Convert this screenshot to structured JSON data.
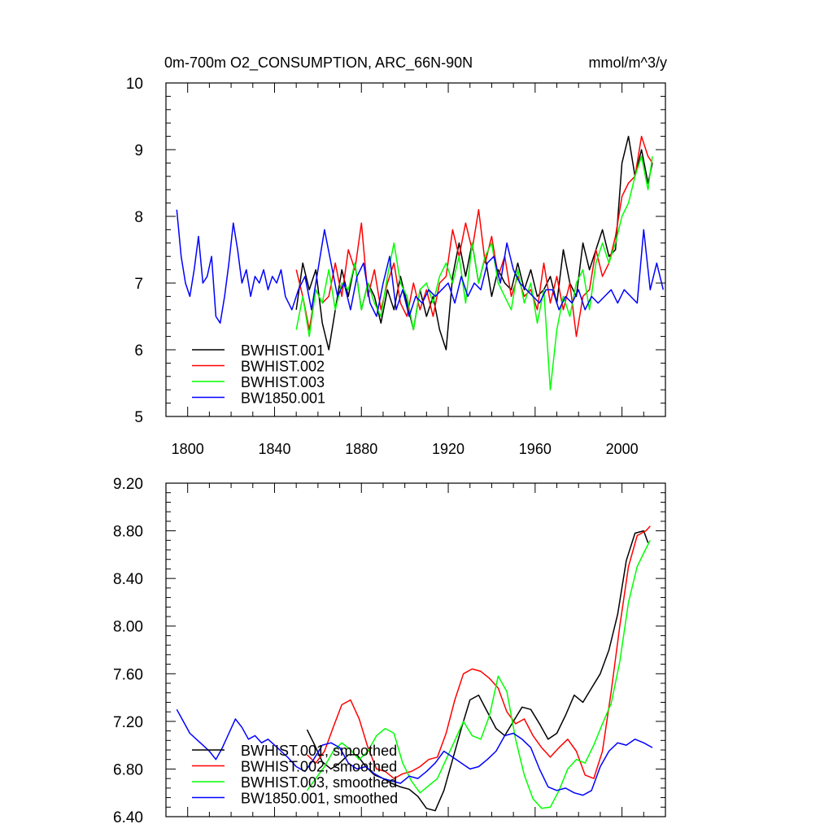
{
  "header": {
    "left_title": "0m-700m O2_CONSUMPTION, ARC_66N-90N",
    "right_title": "mmol/m^3/y"
  },
  "colors": {
    "BWHIST.001": "#000000",
    "BWHIST.002": "#ff0000",
    "BWHIST.003": "#00ff00",
    "BW1850.001": "#0000ff",
    "frame": "#000000"
  },
  "chart_data": [
    {
      "type": "line",
      "title": "0m-700m O2_CONSUMPTION, ARC_66N-90N",
      "units": "mmol/m^3/y",
      "xlim": [
        1790,
        2020
      ],
      "ylim": [
        5,
        10
      ],
      "x_ticks": [
        1800,
        1840,
        1880,
        1920,
        1960,
        2000
      ],
      "x_tick_labels": [
        "1800",
        "1840",
        "1880",
        "1920",
        "1960",
        "2000"
      ],
      "y_ticks": [
        5,
        6,
        7,
        8,
        9,
        10
      ],
      "y_tick_labels": [
        "5",
        "6",
        "7",
        "8",
        "9",
        "10"
      ],
      "legend_position": "bottom-left",
      "series": [
        {
          "name": "BWHIST.001",
          "label": "BWHIST.001",
          "color": "#000000",
          "x": [
            1850,
            1853,
            1856,
            1859,
            1862,
            1865,
            1868,
            1871,
            1874,
            1877,
            1880,
            1883,
            1886,
            1889,
            1892,
            1895,
            1898,
            1901,
            1904,
            1907,
            1910,
            1913,
            1916,
            1919,
            1922,
            1925,
            1928,
            1931,
            1934,
            1937,
            1940,
            1943,
            1946,
            1949,
            1952,
            1955,
            1958,
            1961,
            1964,
            1967,
            1970,
            1973,
            1976,
            1979,
            1982,
            1985,
            1988,
            1991,
            1994,
            1997,
            2000,
            2003,
            2006,
            2009,
            2012,
            2014
          ],
          "values": [
            6.6,
            7.3,
            6.9,
            7.2,
            6.4,
            6.0,
            6.6,
            7.2,
            6.8,
            7.3,
            6.6,
            7.0,
            6.8,
            6.4,
            6.9,
            6.6,
            7.1,
            6.7,
            6.3,
            6.9,
            6.5,
            6.8,
            6.3,
            6.0,
            7.1,
            7.6,
            7.1,
            7.6,
            7.0,
            7.4,
            6.8,
            7.2,
            7.0,
            6.9,
            7.3,
            6.9,
            7.2,
            6.8,
            6.9,
            7.1,
            6.7,
            7.5,
            7.0,
            6.8,
            7.6,
            7.2,
            7.5,
            7.8,
            7.4,
            7.5,
            8.8,
            9.2,
            8.6,
            9.0,
            8.5,
            8.8
          ]
        },
        {
          "name": "BWHIST.002",
          "label": "BWHIST.002",
          "color": "#ff0000",
          "x": [
            1850,
            1853,
            1856,
            1859,
            1862,
            1865,
            1868,
            1871,
            1874,
            1877,
            1880,
            1883,
            1886,
            1889,
            1892,
            1895,
            1898,
            1901,
            1904,
            1907,
            1910,
            1913,
            1916,
            1919,
            1922,
            1925,
            1928,
            1931,
            1934,
            1937,
            1940,
            1943,
            1946,
            1949,
            1952,
            1955,
            1958,
            1961,
            1964,
            1967,
            1970,
            1973,
            1976,
            1979,
            1982,
            1985,
            1988,
            1991,
            1994,
            1997,
            2000,
            2003,
            2006,
            2009,
            2012,
            2014
          ],
          "values": [
            7.2,
            6.8,
            6.3,
            6.9,
            6.7,
            6.8,
            7.3,
            6.8,
            7.5,
            7.2,
            7.9,
            6.8,
            7.2,
            6.6,
            7.0,
            7.3,
            6.7,
            6.5,
            7.0,
            6.6,
            6.9,
            6.5,
            7.0,
            7.1,
            7.8,
            7.4,
            7.9,
            7.5,
            8.1,
            7.3,
            7.7,
            7.1,
            7.4,
            6.8,
            7.1,
            6.8,
            6.9,
            6.6,
            7.3,
            6.7,
            7.1,
            6.6,
            7.0,
            6.2,
            6.8,
            6.9,
            7.5,
            7.1,
            7.3,
            7.7,
            8.3,
            8.5,
            8.6,
            9.2,
            8.9,
            8.8
          ]
        },
        {
          "name": "BWHIST.003",
          "label": "BWHIST.003",
          "color": "#00ff00",
          "x": [
            1850,
            1853,
            1856,
            1859,
            1862,
            1865,
            1868,
            1871,
            1874,
            1877,
            1880,
            1883,
            1886,
            1889,
            1892,
            1895,
            1898,
            1901,
            1904,
            1907,
            1910,
            1913,
            1916,
            1919,
            1922,
            1925,
            1928,
            1931,
            1934,
            1937,
            1940,
            1943,
            1946,
            1949,
            1952,
            1955,
            1958,
            1961,
            1964,
            1967,
            1970,
            1973,
            1976,
            1979,
            1982,
            1985,
            1988,
            1991,
            1994,
            1997,
            2000,
            2003,
            2006,
            2009,
            2012,
            2014
          ],
          "values": [
            6.3,
            6.8,
            6.2,
            6.9,
            6.7,
            7.2,
            6.6,
            7.0,
            6.9,
            7.3,
            6.6,
            7.0,
            6.7,
            6.5,
            7.1,
            7.6,
            7.0,
            6.8,
            6.3,
            6.9,
            7.0,
            6.7,
            7.1,
            7.3,
            7.0,
            7.4,
            6.7,
            7.6,
            7.0,
            7.4,
            7.6,
            7.0,
            6.8,
            6.6,
            7.2,
            6.7,
            7.0,
            6.4,
            6.9,
            5.4,
            6.3,
            6.8,
            6.5,
            7.0,
            7.2,
            6.6,
            7.3,
            7.6,
            7.3,
            7.6,
            8.0,
            8.2,
            8.6,
            8.9,
            8.4,
            8.9
          ]
        },
        {
          "name": "BW1850.001",
          "label": "BW1850.001",
          "color": "#0000ff",
          "x": [
            1795,
            1797,
            1799,
            1801,
            1803,
            1805,
            1807,
            1809,
            1811,
            1813,
            1815,
            1817,
            1819,
            1821,
            1823,
            1825,
            1827,
            1829,
            1831,
            1833,
            1835,
            1837,
            1839,
            1841,
            1843,
            1845,
            1848,
            1851,
            1854,
            1857,
            1860,
            1863,
            1866,
            1869,
            1872,
            1875,
            1878,
            1881,
            1884,
            1887,
            1890,
            1893,
            1896,
            1899,
            1902,
            1905,
            1908,
            1911,
            1914,
            1917,
            1920,
            1923,
            1926,
            1929,
            1932,
            1935,
            1938,
            1941,
            1944,
            1947,
            1950,
            1953,
            1956,
            1959,
            1962,
            1965,
            1968,
            1971,
            1974,
            1977,
            1980,
            1983,
            1986,
            1989,
            1992,
            1995,
            1998,
            2001,
            2004,
            2007,
            2010,
            2013,
            2016,
            2019
          ],
          "values": [
            8.1,
            7.4,
            7.0,
            6.8,
            7.2,
            7.7,
            7.0,
            7.1,
            7.4,
            6.5,
            6.4,
            6.8,
            7.3,
            7.9,
            7.5,
            7.0,
            7.2,
            6.8,
            7.1,
            7.0,
            7.2,
            6.9,
            7.1,
            7.0,
            7.2,
            6.8,
            6.6,
            6.9,
            7.1,
            6.6,
            7.2,
            7.8,
            7.3,
            6.8,
            7.0,
            6.6,
            7.1,
            7.3,
            6.7,
            6.5,
            7.0,
            7.4,
            6.6,
            6.9,
            6.5,
            6.8,
            6.7,
            6.9,
            6.8,
            6.9,
            7.0,
            6.7,
            7.1,
            6.8,
            7.0,
            6.9,
            7.3,
            7.4,
            7.0,
            7.6,
            7.2,
            7.0,
            6.9,
            6.8,
            6.7,
            6.9,
            6.9,
            6.6,
            6.8,
            6.7,
            6.9,
            6.6,
            6.8,
            6.7,
            6.8,
            6.9,
            6.7,
            6.9,
            6.8,
            6.7,
            7.8,
            6.9,
            7.3,
            6.9
          ]
        }
      ]
    },
    {
      "type": "line",
      "title": "",
      "xlim": [
        1790,
        2020
      ],
      "ylim": [
        6.4,
        9.2
      ],
      "x_ticks": [
        1800,
        1840,
        1880,
        1920,
        1960,
        2000
      ],
      "x_tick_labels": [],
      "y_ticks": [
        6.4,
        6.8,
        7.2,
        7.6,
        8.0,
        8.4,
        8.8,
        9.2
      ],
      "y_tick_labels": [
        "6.40",
        "6.80",
        "7.20",
        "7.60",
        "8.00",
        "8.40",
        "8.80",
        "9.20"
      ],
      "legend_position": "bottom-left",
      "series": [
        {
          "name": "BWHIST.001, smoothed",
          "label": "BWHIST.001, smoothed",
          "color": "#000000",
          "x": [
            1855,
            1858,
            1862,
            1866,
            1870,
            1874,
            1878,
            1882,
            1886,
            1890,
            1894,
            1898,
            1902,
            1906,
            1910,
            1914,
            1918,
            1922,
            1926,
            1930,
            1934,
            1938,
            1942,
            1946,
            1950,
            1954,
            1958,
            1962,
            1966,
            1970,
            1974,
            1978,
            1982,
            1986,
            1990,
            1994,
            1998,
            2002,
            2006,
            2010,
            2012
          ],
          "values": [
            7.13,
            7.02,
            6.86,
            6.8,
            6.85,
            6.92,
            6.92,
            6.82,
            6.75,
            6.72,
            6.68,
            6.65,
            6.63,
            6.57,
            6.47,
            6.45,
            6.62,
            6.88,
            7.14,
            7.38,
            7.42,
            7.28,
            7.14,
            7.08,
            7.2,
            7.32,
            7.3,
            7.18,
            7.05,
            7.1,
            7.25,
            7.42,
            7.36,
            7.48,
            7.6,
            7.8,
            8.1,
            8.55,
            8.78,
            8.8,
            8.7
          ]
        },
        {
          "name": "BWHIST.002, smoothed",
          "label": "BWHIST.002, smoothed",
          "color": "#ff0000",
          "x": [
            1855,
            1859,
            1863,
            1867,
            1871,
            1875,
            1879,
            1883,
            1887,
            1891,
            1895,
            1899,
            1903,
            1907,
            1911,
            1915,
            1919,
            1923,
            1927,
            1931,
            1935,
            1939,
            1943,
            1947,
            1951,
            1955,
            1959,
            1963,
            1967,
            1971,
            1975,
            1979,
            1983,
            1987,
            1991,
            1995,
            1999,
            2003,
            2007,
            2011,
            2013
          ],
          "values": [
            6.92,
            6.85,
            6.95,
            7.15,
            7.34,
            7.38,
            7.22,
            6.98,
            6.8,
            6.78,
            6.72,
            6.76,
            6.78,
            6.82,
            6.88,
            6.9,
            7.1,
            7.38,
            7.6,
            7.64,
            7.62,
            7.56,
            7.48,
            7.28,
            7.18,
            7.22,
            7.08,
            6.98,
            6.9,
            6.98,
            7.05,
            6.95,
            6.75,
            6.72,
            6.95,
            7.45,
            8.0,
            8.5,
            8.76,
            8.8,
            8.84
          ]
        },
        {
          "name": "BWHIST.003, smoothed",
          "label": "BWHIST.003, smoothed",
          "color": "#00ff00",
          "x": [
            1855,
            1859,
            1863,
            1867,
            1871,
            1875,
            1879,
            1883,
            1887,
            1891,
            1895,
            1899,
            1903,
            1907,
            1911,
            1915,
            1919,
            1923,
            1927,
            1931,
            1935,
            1939,
            1943,
            1947,
            1951,
            1955,
            1959,
            1963,
            1967,
            1971,
            1975,
            1979,
            1983,
            1987,
            1991,
            1995,
            1999,
            2003,
            2007,
            2011,
            2013
          ],
          "values": [
            6.62,
            6.72,
            6.82,
            6.95,
            7.02,
            6.96,
            6.88,
            6.95,
            7.08,
            7.14,
            7.1,
            6.85,
            6.7,
            6.6,
            6.66,
            6.72,
            6.88,
            7.04,
            7.2,
            7.08,
            7.05,
            7.25,
            7.58,
            7.45,
            7.05,
            6.75,
            6.55,
            6.47,
            6.48,
            6.62,
            6.8,
            6.88,
            6.85,
            7.0,
            7.18,
            7.35,
            7.7,
            8.2,
            8.5,
            8.65,
            8.72
          ]
        },
        {
          "name": "BW1850.001, smoothed",
          "label": "BW1850.001, smoothed",
          "color": "#0000ff",
          "x": [
            1795,
            1798,
            1801,
            1804,
            1807,
            1810,
            1813,
            1816,
            1819,
            1822,
            1825,
            1828,
            1831,
            1834,
            1837,
            1840,
            1843,
            1846,
            1850,
            1854,
            1858,
            1862,
            1866,
            1870,
            1874,
            1878,
            1882,
            1886,
            1890,
            1894,
            1898,
            1902,
            1906,
            1910,
            1914,
            1918,
            1922,
            1926,
            1930,
            1934,
            1938,
            1942,
            1946,
            1950,
            1954,
            1958,
            1962,
            1966,
            1970,
            1974,
            1978,
            1982,
            1986,
            1990,
            1994,
            1998,
            2002,
            2006,
            2010,
            2014
          ],
          "values": [
            7.3,
            7.2,
            7.1,
            7.05,
            7.0,
            6.95,
            6.88,
            6.98,
            7.1,
            7.22,
            7.15,
            7.05,
            7.08,
            7.02,
            7.05,
            7.0,
            6.95,
            6.9,
            6.82,
            6.78,
            6.88,
            7.0,
            7.02,
            6.98,
            6.85,
            6.8,
            6.82,
            6.76,
            6.72,
            6.7,
            6.68,
            6.74,
            6.72,
            6.78,
            6.85,
            6.95,
            6.9,
            6.85,
            6.8,
            6.82,
            6.88,
            6.95,
            7.08,
            7.1,
            7.05,
            6.98,
            6.8,
            6.65,
            6.62,
            6.64,
            6.6,
            6.58,
            6.62,
            6.82,
            6.95,
            7.02,
            7.0,
            7.05,
            7.02,
            6.98
          ]
        }
      ]
    }
  ]
}
